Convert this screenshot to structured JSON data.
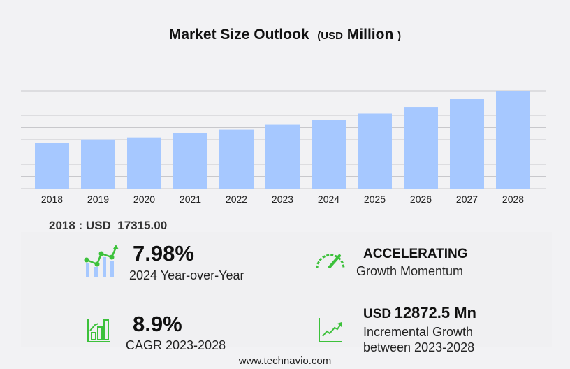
{
  "title": {
    "main": "Market Size Outlook",
    "open": "(",
    "unit": "USD",
    "unit2": "Million",
    "close": ")"
  },
  "chart_data": {
    "type": "bar",
    "title": "Market Size Outlook (USD Million)",
    "categories": [
      "2018",
      "2019",
      "2020",
      "2021",
      "2022",
      "2023",
      "2024",
      "2025",
      "2026",
      "2027",
      "2028"
    ],
    "values": [
      17315,
      18650,
      19440,
      21040,
      22380,
      24240,
      26175,
      28500,
      31000,
      34000,
      37112
    ],
    "ylim": [
      0,
      37112
    ],
    "grid": true,
    "bar_color": "#a6c8ff",
    "xlabel": "",
    "ylabel": ""
  },
  "first_value": "2018 : USD  17315.00",
  "kpis": {
    "yoy": {
      "value": "7.98%",
      "label": "2024 Year-over-Year"
    },
    "momentum": {
      "value": "ACCELERATING",
      "label": "Growth Momentum"
    },
    "cagr": {
      "value": "8.9%",
      "label": "CAGR 2023-2028"
    },
    "incremental": {
      "unit": "USD",
      "value": "12872.5 Mn",
      "label1": "Incremental Growth",
      "label2": "between 2023-2028"
    }
  },
  "footer": "www.technavio.com",
  "colors": {
    "accent": "#3cc13b",
    "bar": "#a6c8ff"
  }
}
